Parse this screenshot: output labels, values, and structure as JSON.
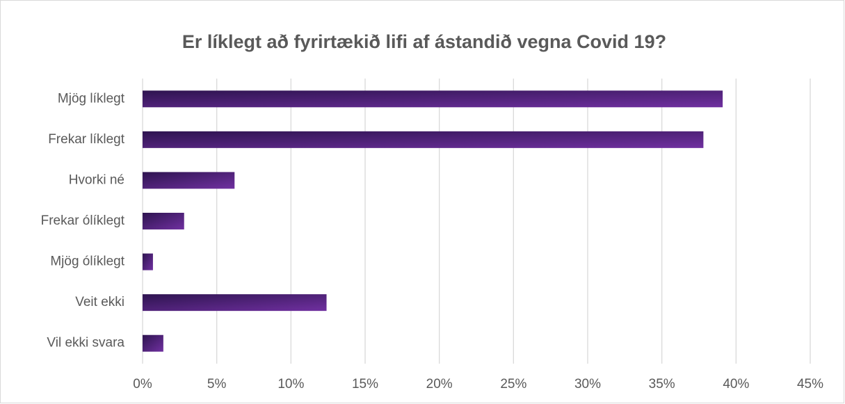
{
  "chart_data": {
    "type": "barh",
    "title": "Er líklegt að fyrirtækið lifi af ástandið vegna Covid 19?",
    "categories": [
      "Mjög líklegt",
      "Frekar líklegt",
      "Hvorki né",
      "Frekar ólíklegt",
      "Mjög ólíklegt",
      "Veit ekki",
      "Vil ekki svara"
    ],
    "values": [
      39.1,
      37.8,
      6.2,
      2.8,
      0.7,
      12.4,
      1.4
    ],
    "color": "#7030a0",
    "xlim": [
      0,
      45
    ],
    "xticks": [
      {
        "value": 0,
        "label": "0%"
      },
      {
        "value": 5,
        "label": "5%"
      },
      {
        "value": 10,
        "label": "10%"
      },
      {
        "value": 15,
        "label": "15%"
      },
      {
        "value": 20,
        "label": "20%"
      },
      {
        "value": 25,
        "label": "25%"
      },
      {
        "value": 30,
        "label": "30%"
      },
      {
        "value": 35,
        "label": "35%"
      },
      {
        "value": 40,
        "label": "40%"
      },
      {
        "value": 45,
        "label": "45%"
      }
    ],
    "grid": true
  }
}
